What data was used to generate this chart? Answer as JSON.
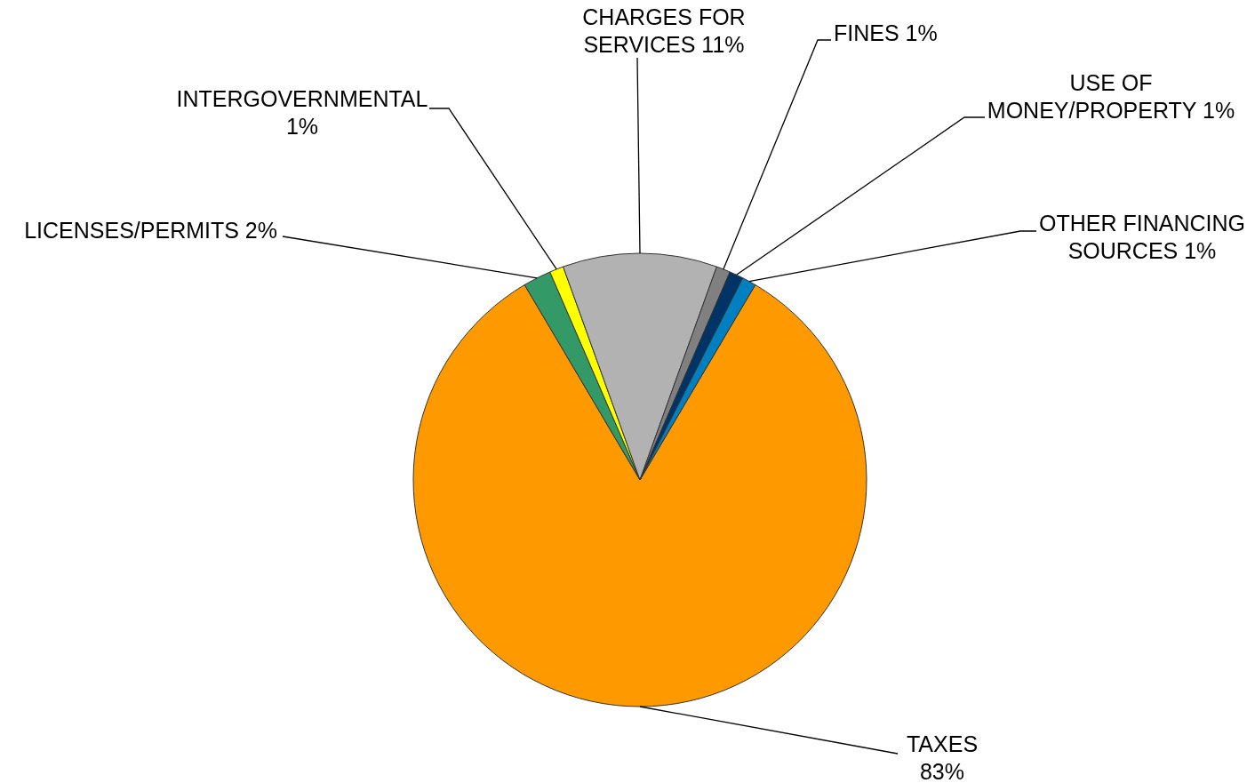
{
  "chart_data": {
    "type": "pie",
    "categories": [
      "TAXES",
      "LICENSES/PERMITS",
      "INTERGOVERNMENTAL",
      "CHARGES FOR SERVICES",
      "FINES",
      "USE OF MONEY/PROPERTY",
      "OTHER FINANCING SOURCES"
    ],
    "values": [
      83,
      2,
      1,
      11,
      1,
      1,
      1
    ],
    "colors": [
      "#ff9900",
      "#339966",
      "#ffff00",
      "#b2b2b2",
      "#808080",
      "#003366",
      "#0080c0"
    ],
    "value_labels": [
      "83%",
      "2%",
      "1%",
      "11%",
      "1%",
      "1%",
      "1%"
    ],
    "legend": false
  }
}
